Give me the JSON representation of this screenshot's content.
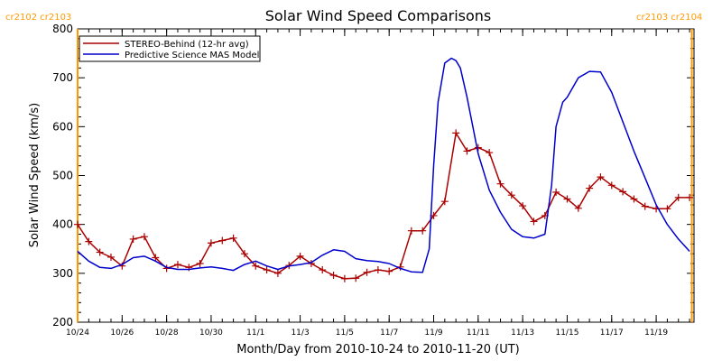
{
  "chart_data": {
    "type": "line",
    "title": "Solar Wind Speed Comparisons",
    "xlabel": "Month/Day from 2010-10-24 to 2010-11-20 (UT)",
    "ylabel": "Solar Wind Speed (km/s)",
    "x_range": [
      0,
      27.7
    ],
    "ylim": [
      200,
      800
    ],
    "y_ticks": [
      200,
      300,
      400,
      500,
      600,
      700,
      800
    ],
    "x_ticks": [
      {
        "x": 0,
        "label": "10/24"
      },
      {
        "x": 2,
        "label": "10/26"
      },
      {
        "x": 4,
        "label": "10/28"
      },
      {
        "x": 6,
        "label": "10/30"
      },
      {
        "x": 8,
        "label": "11/1"
      },
      {
        "x": 10,
        "label": "11/3"
      },
      {
        "x": 12,
        "label": "11/5"
      },
      {
        "x": 14,
        "label": "11/7"
      },
      {
        "x": 16,
        "label": "11/9"
      },
      {
        "x": 18,
        "label": "11/11"
      },
      {
        "x": 20,
        "label": "11/13"
      },
      {
        "x": 22,
        "label": "11/15"
      },
      {
        "x": 24,
        "label": "11/17"
      },
      {
        "x": 26,
        "label": "11/19"
      }
    ],
    "minor_tick_step": 0.5,
    "legend_position": "top-left",
    "series": [
      {
        "name": "STEREO-Behind (12-hr avg)",
        "color": "#aa0000",
        "marker": "plus",
        "x": [
          0,
          0.5,
          1,
          1.5,
          2,
          2.5,
          3,
          3.5,
          4,
          4.5,
          5,
          5.5,
          6,
          6.5,
          7,
          7.5,
          8,
          8.5,
          9,
          9.5,
          10,
          10.5,
          11,
          11.5,
          12,
          12.5,
          13,
          13.5,
          14,
          14.5,
          15,
          15.5,
          16,
          16.5,
          17,
          17.5,
          18,
          18.5,
          19,
          19.5,
          20,
          20.5,
          21,
          21.5,
          22,
          22.5,
          23,
          23.5,
          24,
          24.5,
          25,
          25.5,
          26,
          26.5,
          27,
          27.5
        ],
        "values": [
          400,
          365,
          343,
          333,
          315,
          370,
          375,
          332,
          310,
          318,
          312,
          320,
          362,
          367,
          372,
          340,
          315,
          307,
          300,
          316,
          335,
          320,
          307,
          296,
          289,
          290,
          302,
          307,
          304,
          313,
          387,
          387,
          418,
          447,
          587,
          550,
          557,
          547,
          483,
          460,
          438,
          406,
          418,
          466,
          452,
          433,
          474,
          497,
          480,
          467,
          452,
          437,
          432,
          432,
          455,
          455
        ]
      },
      {
        "name": "Predictive Science MAS Model",
        "color": "#0000cc",
        "marker": "none",
        "x": [
          0,
          0.5,
          1,
          1.5,
          2,
          2.5,
          3,
          3.5,
          4,
          4.5,
          5,
          5.5,
          6,
          6.5,
          7,
          7.5,
          8,
          8.5,
          9,
          9.5,
          10,
          10.5,
          11,
          11.5,
          12,
          12.5,
          13,
          13.5,
          14,
          14.5,
          15,
          15.5,
          15.8,
          16,
          16.2,
          16.5,
          16.8,
          17,
          17.2,
          17.5,
          18,
          18.5,
          19,
          19.5,
          20,
          20.5,
          21,
          21.3,
          21.5,
          21.8,
          22,
          22.5,
          23,
          23.5,
          24,
          24.5,
          25,
          25.5,
          26,
          26.5,
          27,
          27.5
        ],
        "values": [
          345,
          325,
          312,
          310,
          318,
          332,
          335,
          325,
          312,
          308,
          308,
          311,
          313,
          310,
          306,
          318,
          325,
          315,
          308,
          315,
          318,
          322,
          337,
          348,
          345,
          330,
          326,
          324,
          320,
          310,
          303,
          302,
          350,
          520,
          650,
          730,
          740,
          735,
          720,
          660,
          545,
          470,
          425,
          390,
          375,
          372,
          380,
          480,
          600,
          650,
          660,
          700,
          713,
          712,
          670,
          610,
          550,
          495,
          440,
          400,
          370,
          345
        ]
      }
    ],
    "annotations": [
      {
        "text": "cr2102 cr2103",
        "x": 0,
        "color": "#ff9900"
      },
      {
        "text": "cr2103 cr2104",
        "x": 27.6,
        "color": "#ff9900"
      }
    ]
  }
}
